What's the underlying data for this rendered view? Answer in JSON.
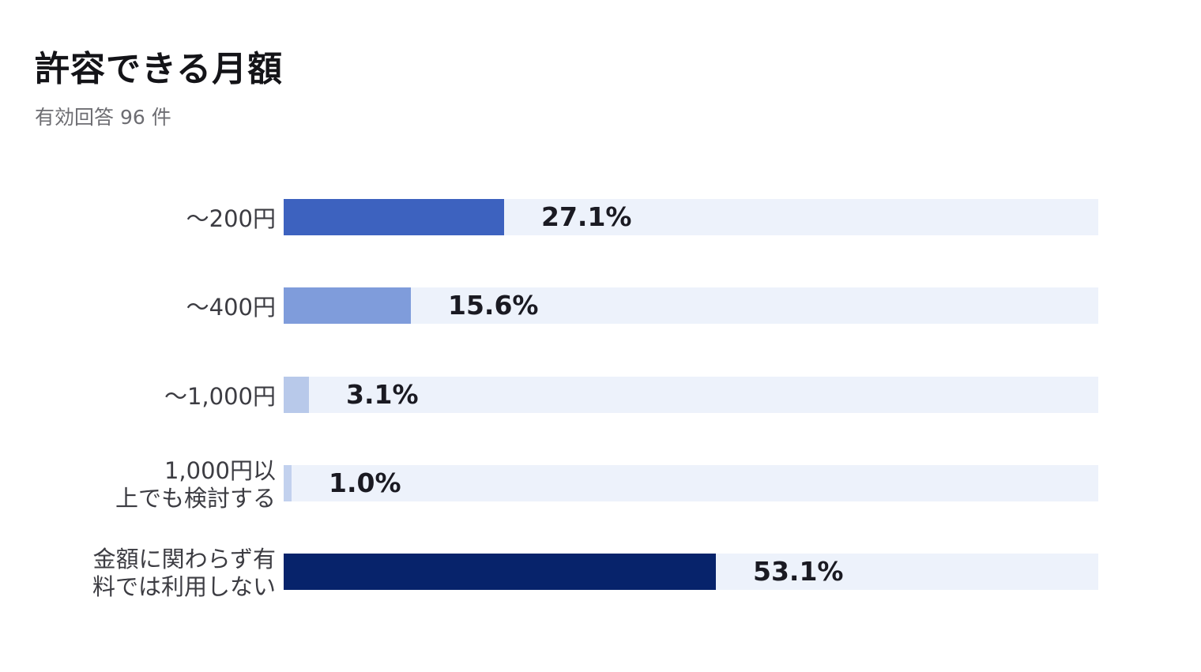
{
  "title": "許容できる月額",
  "subtitle": "有効回答 96 件",
  "chart_data": {
    "type": "bar",
    "orientation": "horizontal",
    "title": "許容できる月額",
    "subtitle": "有効回答 96 件",
    "xlabel": "",
    "ylabel": "",
    "xlim": [
      0,
      100
    ],
    "grid": false,
    "legend": "none",
    "track_color": "#edf2fb",
    "categories": [
      "〜200円",
      "〜400円",
      "〜1,000円",
      "1,000円以\n上でも検討する",
      "金額に関わらず有\n料では利用しない"
    ],
    "values": [
      27.1,
      15.6,
      3.1,
      1.0,
      53.1
    ],
    "labels": [
      "27.1%",
      "15.6%",
      "3.1%",
      "1.0%",
      "53.1%"
    ],
    "colors": [
      "#3d62bf",
      "#7f9cdb",
      "#b8c9ea",
      "#c2d1ee",
      "#07236b"
    ]
  }
}
